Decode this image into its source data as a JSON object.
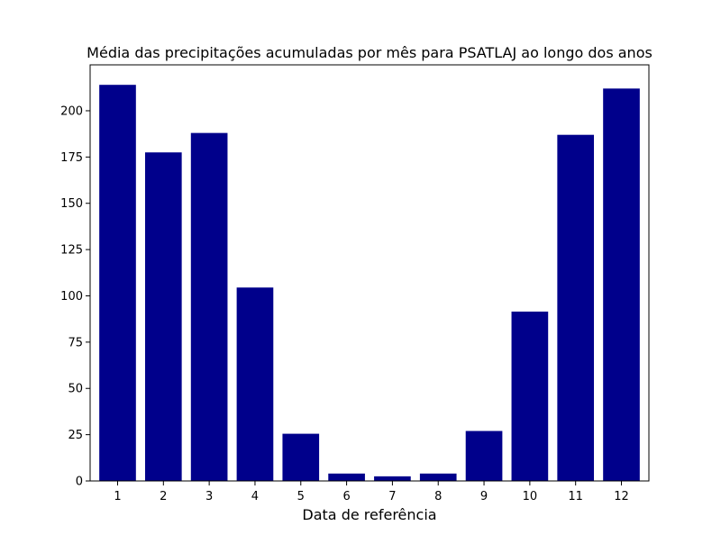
{
  "chart_data": {
    "type": "bar",
    "title": "Média das precipitações acumuladas por mês para PSATLAJ ao longo dos anos",
    "xlabel": "Data de referência",
    "ylabel": "",
    "categories": [
      "1",
      "2",
      "3",
      "4",
      "5",
      "6",
      "7",
      "8",
      "9",
      "10",
      "11",
      "12"
    ],
    "values": [
      214,
      177.5,
      188,
      104.5,
      25.5,
      4,
      2.5,
      4,
      27,
      91.5,
      187,
      212
    ],
    "ylim": [
      0,
      224.8
    ],
    "yticks": [
      "0",
      "25",
      "50",
      "75",
      "100",
      "125",
      "150",
      "175",
      "200"
    ],
    "bar_color": "#00008b",
    "grid": false,
    "legend": "none"
  }
}
